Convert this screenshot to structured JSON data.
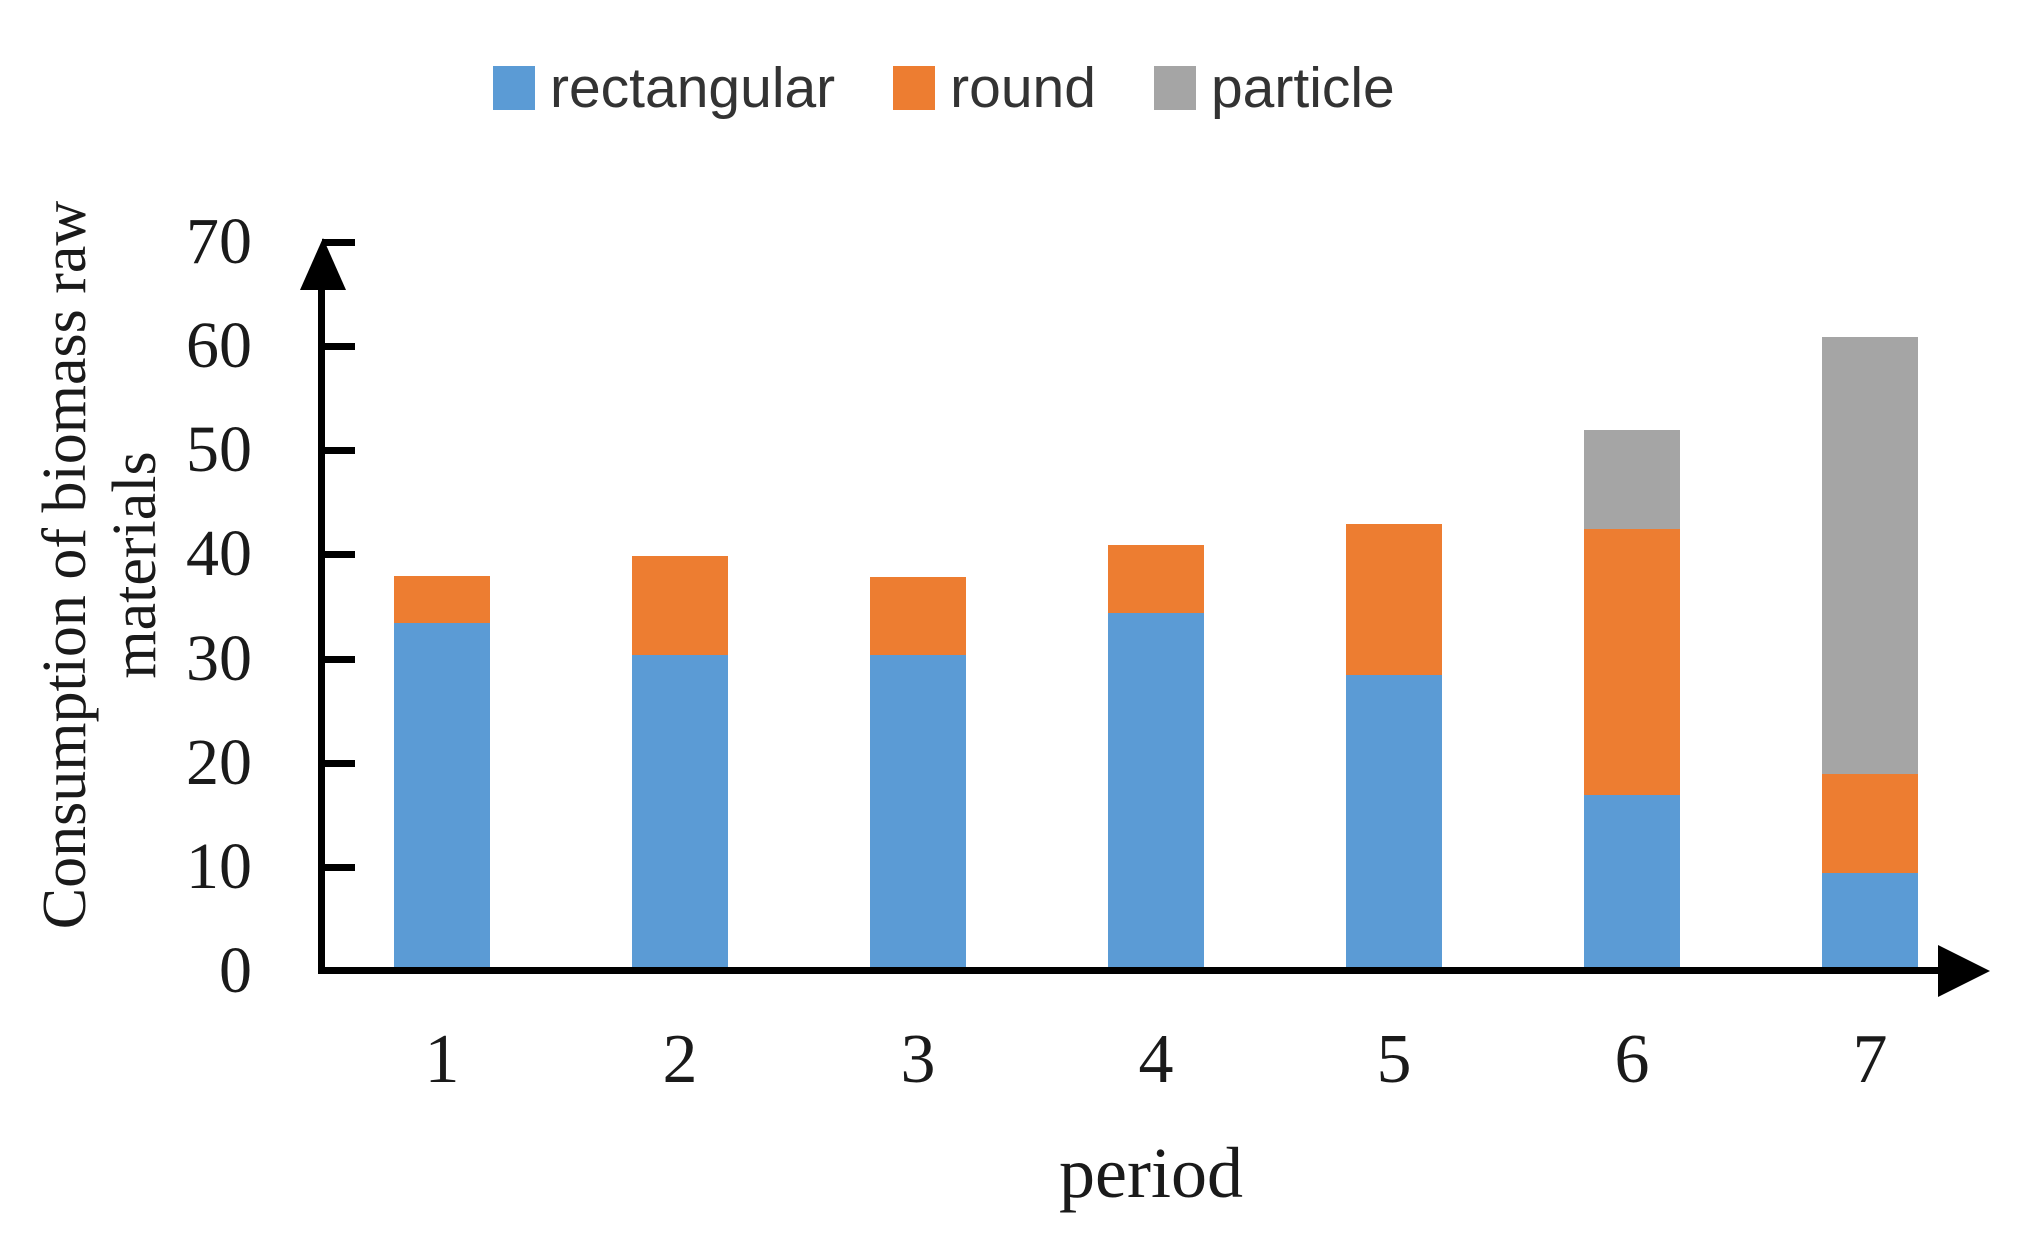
{
  "legend": {
    "items": [
      {
        "label": "rectangular",
        "color": "#5B9BD5"
      },
      {
        "label": "round",
        "color": "#ED7D31"
      },
      {
        "label": "particle",
        "color": "#A5A5A5"
      }
    ]
  },
  "y_axis": {
    "title_line1": "Consumption of biomass raw",
    "title_line2": "materials",
    "tick_labels": [
      "0",
      "10",
      "20",
      "30",
      "40",
      "50",
      "60",
      "70"
    ]
  },
  "x_axis": {
    "title": "period",
    "categories": [
      "1",
      "2",
      "3",
      "4",
      "5",
      "6",
      "7"
    ]
  },
  "chart_data": {
    "type": "bar",
    "stacked": true,
    "title": "",
    "xlabel": "period",
    "ylabel": "Consumption of biomass raw materials",
    "categories": [
      1,
      2,
      3,
      4,
      5,
      6,
      7
    ],
    "series": [
      {
        "name": "rectangular",
        "color": "#5B9BD5",
        "values": [
          33,
          30,
          30,
          34,
          28,
          16.5,
          9
        ]
      },
      {
        "name": "round",
        "color": "#ED7D31",
        "values": [
          4.5,
          9.5,
          7.5,
          6.5,
          14.5,
          25.5,
          9.5
        ]
      },
      {
        "name": "particle",
        "color": "#A5A5A5",
        "values": [
          0,
          0,
          0,
          0,
          0,
          9.5,
          42
        ]
      }
    ],
    "stack_totals": [
      37.5,
      39.5,
      37.5,
      40.5,
      42.5,
      51.5,
      60.5
    ],
    "ylim": [
      0,
      70
    ],
    "y_tick_step": 10,
    "grid": false,
    "legend_position": "top"
  }
}
